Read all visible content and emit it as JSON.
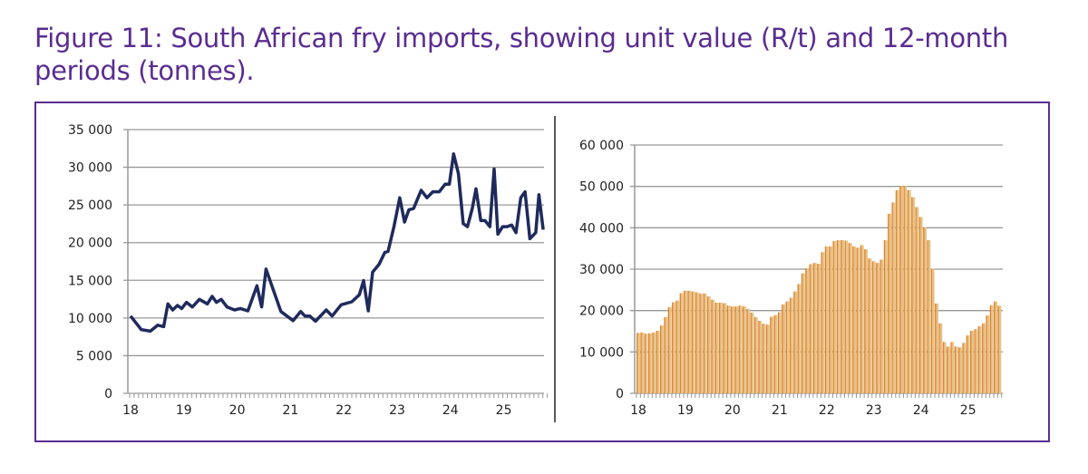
{
  "title": "Figure 11: South African fry imports, showing unit value (R/t) and 12-month periods (tonnes).",
  "colors": {
    "title": "#5a2d91",
    "line": "#1f2a5c",
    "bar": "#e8822a",
    "bar_fill": "#e2c48a",
    "grid": "#999999"
  },
  "chart_data": [
    {
      "type": "line",
      "name": "unit value (R/t)",
      "ylim": [
        0,
        35000
      ],
      "yticks": [
        "0",
        "5 000",
        "10 000",
        "15 000",
        "20 000",
        "25 000",
        "30 000",
        "35 000"
      ],
      "ytick_values": [
        0,
        5000,
        10000,
        15000,
        20000,
        25000,
        30000,
        35000
      ],
      "xticks": [
        "18",
        "19",
        "20",
        "21",
        "22",
        "23",
        "24",
        "25"
      ],
      "xlim": [
        18,
        25.75
      ],
      "grid": true,
      "points": [
        [
          18.0,
          10260
        ],
        [
          18.2,
          8450
        ],
        [
          18.37,
          8250
        ],
        [
          18.51,
          9050
        ],
        [
          18.62,
          8850
        ],
        [
          18.7,
          11870
        ],
        [
          18.79,
          11060
        ],
        [
          18.88,
          11670
        ],
        [
          18.96,
          11260
        ],
        [
          19.05,
          12070
        ],
        [
          19.16,
          11460
        ],
        [
          19.29,
          12470
        ],
        [
          19.44,
          11870
        ],
        [
          19.53,
          12870
        ],
        [
          19.61,
          12070
        ],
        [
          19.7,
          12470
        ],
        [
          19.81,
          11460
        ],
        [
          19.95,
          11060
        ],
        [
          20.06,
          11260
        ],
        [
          20.2,
          10940
        ],
        [
          20.37,
          14280
        ],
        [
          20.46,
          11460
        ],
        [
          20.54,
          16490
        ],
        [
          20.68,
          13680
        ],
        [
          20.82,
          10860
        ],
        [
          21.05,
          9650
        ],
        [
          21.19,
          10860
        ],
        [
          21.27,
          10260
        ],
        [
          21.36,
          10260
        ],
        [
          21.47,
          9570
        ],
        [
          21.67,
          11060
        ],
        [
          21.78,
          10260
        ],
        [
          21.95,
          11750
        ],
        [
          22.15,
          12150
        ],
        [
          22.29,
          13070
        ],
        [
          22.37,
          14960
        ],
        [
          22.46,
          10940
        ],
        [
          22.54,
          16090
        ],
        [
          22.66,
          17100
        ],
        [
          22.77,
          18710
        ],
        [
          22.83,
          18830
        ],
        [
          22.94,
          22120
        ],
        [
          23.05,
          25950
        ],
        [
          23.14,
          22730
        ],
        [
          23.22,
          24340
        ],
        [
          23.31,
          24540
        ],
        [
          23.45,
          26950
        ],
        [
          23.56,
          25950
        ],
        [
          23.67,
          26750
        ],
        [
          23.79,
          26750
        ],
        [
          23.9,
          27750
        ],
        [
          23.98,
          27750
        ],
        [
          24.06,
          31780
        ],
        [
          24.15,
          29160
        ],
        [
          24.24,
          22530
        ],
        [
          24.32,
          22120
        ],
        [
          24.41,
          24540
        ],
        [
          24.48,
          27150
        ],
        [
          24.57,
          22930
        ],
        [
          24.65,
          22930
        ],
        [
          24.74,
          22120
        ],
        [
          24.82,
          29770
        ],
        [
          24.89,
          21120
        ],
        [
          24.98,
          22120
        ],
        [
          25.06,
          22120
        ],
        [
          25.15,
          22330
        ],
        [
          25.23,
          21320
        ],
        [
          25.32,
          25950
        ],
        [
          25.4,
          26750
        ],
        [
          25.49,
          20520
        ],
        [
          25.6,
          21320
        ],
        [
          25.66,
          26350
        ],
        [
          25.74,
          21720
        ]
      ]
    },
    {
      "type": "bar",
      "name": "12-month periods (tonnes)",
      "ylim": [
        0,
        60000
      ],
      "yticks": [
        "0",
        "10 000",
        "20 000",
        "30 000",
        "40 000",
        "50 000",
        "60 000"
      ],
      "ytick_values": [
        0,
        10000,
        20000,
        30000,
        40000,
        50000,
        60000
      ],
      "xticks": [
        "18",
        "19",
        "20",
        "21",
        "22",
        "23",
        "24",
        "25"
      ],
      "grid": true,
      "start": "Jan 2018",
      "frequency": "monthly",
      "values": [
        14600,
        14700,
        14400,
        14500,
        14700,
        15100,
        16400,
        18400,
        20800,
        22000,
        22400,
        24200,
        24800,
        24800,
        24600,
        24400,
        24100,
        24100,
        23400,
        22600,
        21900,
        21900,
        21800,
        21200,
        21000,
        21000,
        21200,
        21000,
        20400,
        19500,
        18400,
        17500,
        16800,
        16600,
        18500,
        18900,
        19600,
        21500,
        22200,
        23100,
        24600,
        26400,
        29000,
        30200,
        31200,
        31500,
        31300,
        34100,
        35500,
        35500,
        36800,
        37000,
        37000,
        36900,
        36300,
        35500,
        35200,
        35800,
        34800,
        32600,
        31900,
        31500,
        32300,
        37000,
        43400,
        46100,
        49100,
        50100,
        50100,
        49100,
        47400,
        45000,
        42600,
        40100,
        37000,
        30100,
        21700,
        16900,
        12400,
        11300,
        12400,
        11300,
        11100,
        12200,
        14000,
        15100,
        15500,
        16200,
        16900,
        18800,
        21300,
        22200,
        21200
      ]
    }
  ]
}
